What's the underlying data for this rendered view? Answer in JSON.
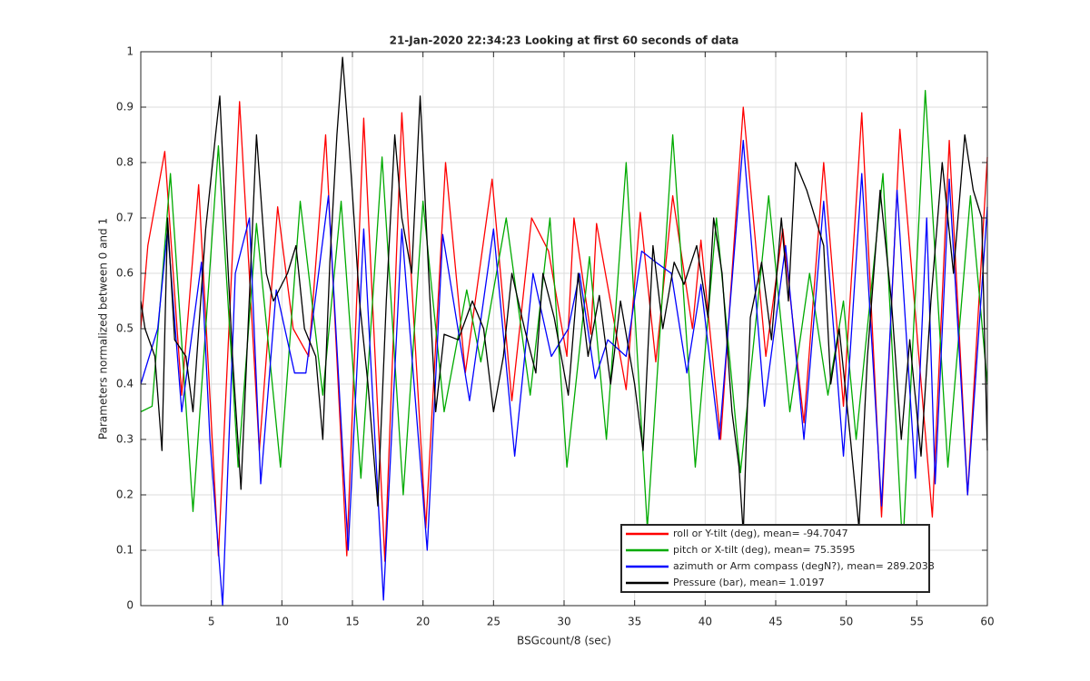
{
  "chart_data": {
    "type": "line",
    "title": "21-Jan-2020 22:34:23 Looking at first 60 seconds of data",
    "x_label": "BSGcount/8 (sec)",
    "y_label": "Parameters normalized between 0 and 1",
    "xlim": [
      0,
      60
    ],
    "ylim": [
      0,
      1
    ],
    "xticks": [
      5,
      10,
      15,
      20,
      25,
      30,
      35,
      40,
      45,
      50,
      55,
      60
    ],
    "yticks": [
      0,
      0.1,
      0.2,
      0.3,
      0.4,
      0.5,
      0.6,
      0.7,
      0.8,
      0.9,
      1
    ],
    "grid": true,
    "legend": "lower right",
    "series": [
      {
        "name": "roll or Y-tilt (deg), mean= -94.7047",
        "color": "#ff0000",
        "x": [
          0,
          0.5,
          1.7,
          2.9,
          4.1,
          5.5,
          7.0,
          8.4,
          9.7,
          10.8,
          11.9,
          13.1,
          14.6,
          15.8,
          17.3,
          18.5,
          20.2,
          21.6,
          23.0,
          24.9,
          26.3,
          27.7,
          28.9,
          30.2,
          30.7,
          31.9,
          32.3,
          34.4,
          35.4,
          36.5,
          37.7,
          39.1,
          39.7,
          41.1,
          42.7,
          44.3,
          45.5,
          47.0,
          48.4,
          49.8,
          51.1,
          52.5,
          53.8,
          56.1,
          57.3,
          58.6,
          60
        ],
        "values": [
          0.5,
          0.65,
          0.82,
          0.38,
          0.76,
          0.09,
          0.91,
          0.28,
          0.72,
          0.5,
          0.45,
          0.85,
          0.09,
          0.88,
          0.08,
          0.89,
          0.14,
          0.8,
          0.42,
          0.77,
          0.37,
          0.7,
          0.64,
          0.45,
          0.7,
          0.49,
          0.69,
          0.39,
          0.71,
          0.44,
          0.74,
          0.5,
          0.66,
          0.3,
          0.9,
          0.45,
          0.68,
          0.33,
          0.8,
          0.36,
          0.89,
          0.16,
          0.86,
          0.16,
          0.84,
          0.2,
          0.81
        ]
      },
      {
        "name": "pitch or X-tilt (deg), mean= 75.3595",
        "color": "#00aa00",
        "x": [
          0,
          0.8,
          2.1,
          3.7,
          5.5,
          6.9,
          8.2,
          9.9,
          11.3,
          12.9,
          14.2,
          15.6,
          17.1,
          18.6,
          20.0,
          21.5,
          23.1,
          24.1,
          25.9,
          27.6,
          29.0,
          30.2,
          31.8,
          33.0,
          34.4,
          35.9,
          37.7,
          39.3,
          40.8,
          42.5,
          44.5,
          46.0,
          47.4,
          48.7,
          49.8,
          50.7,
          52.6,
          54.0,
          55.6,
          57.2,
          58.8,
          60
        ],
        "values": [
          0.35,
          0.36,
          0.78,
          0.17,
          0.83,
          0.25,
          0.69,
          0.25,
          0.73,
          0.38,
          0.73,
          0.23,
          0.81,
          0.2,
          0.73,
          0.35,
          0.57,
          0.44,
          0.7,
          0.38,
          0.7,
          0.25,
          0.63,
          0.3,
          0.8,
          0.14,
          0.85,
          0.25,
          0.7,
          0.24,
          0.74,
          0.35,
          0.6,
          0.38,
          0.55,
          0.3,
          0.78,
          0.1,
          0.93,
          0.25,
          0.74,
          0.4
        ]
      },
      {
        "name": "azimuth or Arm compass (degN?), mean= 289.2038",
        "color": "#0000ff",
        "x": [
          0,
          1.2,
          1.9,
          2.9,
          4.3,
          4.9,
          5.8,
          6.7,
          7.7,
          8.5,
          9.6,
          10.9,
          11.7,
          13.3,
          14.7,
          15.8,
          17.2,
          18.5,
          20.3,
          21.4,
          23.3,
          25.0,
          26.5,
          27.8,
          29.1,
          30.3,
          31.1,
          32.2,
          33.1,
          34.4,
          35.5,
          36.5,
          37.6,
          38.7,
          39.7,
          41.0,
          42.7,
          44.2,
          45.7,
          47.0,
          48.4,
          49.8,
          51.1,
          52.5,
          53.6,
          54.9,
          55.7,
          56.3,
          57.3,
          58.6,
          60
        ],
        "values": [
          0.4,
          0.5,
          0.68,
          0.35,
          0.62,
          0.3,
          0.0,
          0.6,
          0.7,
          0.22,
          0.57,
          0.42,
          0.42,
          0.74,
          0.1,
          0.68,
          0.01,
          0.68,
          0.1,
          0.67,
          0.37,
          0.68,
          0.27,
          0.6,
          0.45,
          0.5,
          0.6,
          0.41,
          0.48,
          0.45,
          0.64,
          0.62,
          0.6,
          0.42,
          0.58,
          0.3,
          0.84,
          0.36,
          0.65,
          0.3,
          0.73,
          0.27,
          0.78,
          0.18,
          0.75,
          0.23,
          0.7,
          0.22,
          0.77,
          0.2,
          0.72
        ]
      },
      {
        "name": "Pressure (bar), mean= 1.0197",
        "color": "#000000",
        "x": [
          0,
          0.3,
          1.0,
          1.5,
          1.9,
          2.4,
          3.2,
          3.7,
          4.6,
          5.3,
          5.6,
          6.0,
          6.5,
          7.1,
          7.6,
          8.2,
          8.9,
          9.4,
          10.4,
          11.0,
          11.6,
          12.4,
          12.9,
          13.4,
          13.9,
          14.3,
          14.8,
          15.5,
          16.1,
          16.8,
          17.4,
          18.0,
          18.5,
          19.2,
          19.8,
          20.4,
          20.9,
          21.5,
          22.5,
          23.5,
          24.3,
          25.0,
          25.7,
          26.3,
          27.2,
          28.0,
          28.5,
          29.3,
          30.3,
          31.0,
          31.7,
          32.5,
          33.3,
          34.0,
          35.0,
          35.6,
          36.3,
          37.0,
          37.8,
          38.5,
          39.4,
          40.2,
          40.6,
          41.2,
          41.9,
          42.4,
          42.7,
          43.2,
          44.0,
          44.7,
          45.4,
          45.9,
          46.4,
          47.2,
          48.4,
          48.9,
          49.5,
          50.3,
          50.9,
          51.5,
          52.4,
          53.2,
          53.9,
          54.5,
          55.3,
          56.0,
          56.8,
          57.6,
          58.4,
          59.0,
          59.6,
          60
        ],
        "values": [
          0.55,
          0.5,
          0.45,
          0.28,
          0.7,
          0.48,
          0.45,
          0.35,
          0.68,
          0.85,
          0.92,
          0.7,
          0.45,
          0.21,
          0.5,
          0.85,
          0.6,
          0.55,
          0.6,
          0.65,
          0.5,
          0.45,
          0.3,
          0.62,
          0.85,
          0.99,
          0.82,
          0.55,
          0.4,
          0.18,
          0.55,
          0.85,
          0.7,
          0.6,
          0.92,
          0.6,
          0.35,
          0.49,
          0.48,
          0.55,
          0.5,
          0.35,
          0.45,
          0.6,
          0.5,
          0.42,
          0.6,
          0.52,
          0.38,
          0.6,
          0.45,
          0.56,
          0.4,
          0.55,
          0.4,
          0.28,
          0.65,
          0.5,
          0.62,
          0.58,
          0.65,
          0.52,
          0.7,
          0.6,
          0.35,
          0.25,
          0.13,
          0.52,
          0.62,
          0.48,
          0.7,
          0.55,
          0.8,
          0.75,
          0.65,
          0.4,
          0.5,
          0.3,
          0.14,
          0.45,
          0.75,
          0.55,
          0.3,
          0.48,
          0.27,
          0.55,
          0.8,
          0.6,
          0.85,
          0.75,
          0.7,
          0.28
        ]
      }
    ]
  }
}
